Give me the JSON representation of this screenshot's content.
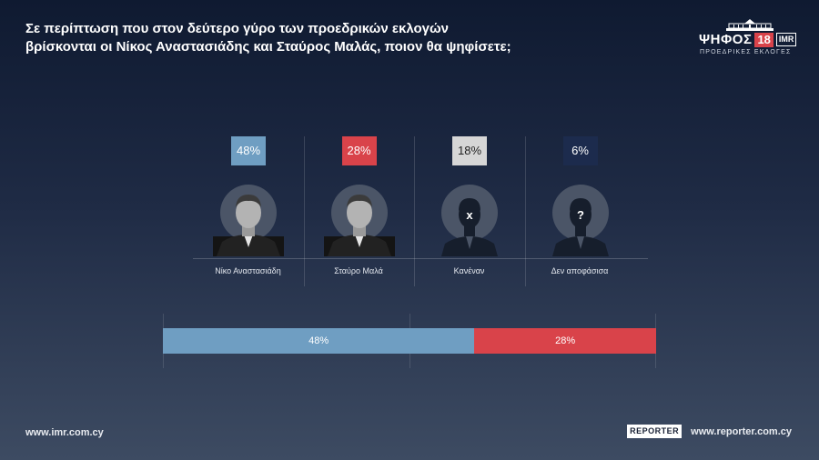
{
  "title": {
    "line1": "Σε περίπτωση που στον δεύτερο γύρο των προεδρικών εκλογών",
    "line2": "βρίσκονται οι Νίκος Αναστασιάδης και Σταύρος Μαλάς, ποιον θα ψηφίσετε;"
  },
  "logo": {
    "word": "ΨΗΦΟΣ",
    "number": "18",
    "badge": "IMR",
    "subtitle": "ΠΡΟΕΔΡΙΚΕΣ ΕΚΛΟΓΕΣ"
  },
  "chart_data": [
    {
      "type": "bar",
      "categories": [
        "Νίκο Αναστασιάδη",
        "Σταύρο Μαλά",
        "Κανέναν",
        "Δεν αποφάσισα"
      ],
      "values": [
        48,
        28,
        18,
        6
      ],
      "data_labels": [
        "48%",
        "28%",
        "18%",
        "6%"
      ],
      "colors": [
        "#6f9ec2",
        "#d9434a",
        "#d6d6d6",
        "#1c2b4d"
      ],
      "icons": [
        "photo",
        "photo",
        "x-icon",
        "question-icon"
      ]
    },
    {
      "type": "bar",
      "categories": [
        "Νίκο Αναστασιάδη",
        "Σταύρο Μαλά"
      ],
      "values": [
        48,
        28
      ],
      "data_labels": [
        "48%",
        "28%"
      ],
      "colors": [
        "#6f9ec2",
        "#d9434a"
      ],
      "stacked": true
    }
  ],
  "footer": {
    "left": "www.imr.com.cy",
    "right": "www.reporter.com.cy",
    "brand": "REPORTER"
  }
}
